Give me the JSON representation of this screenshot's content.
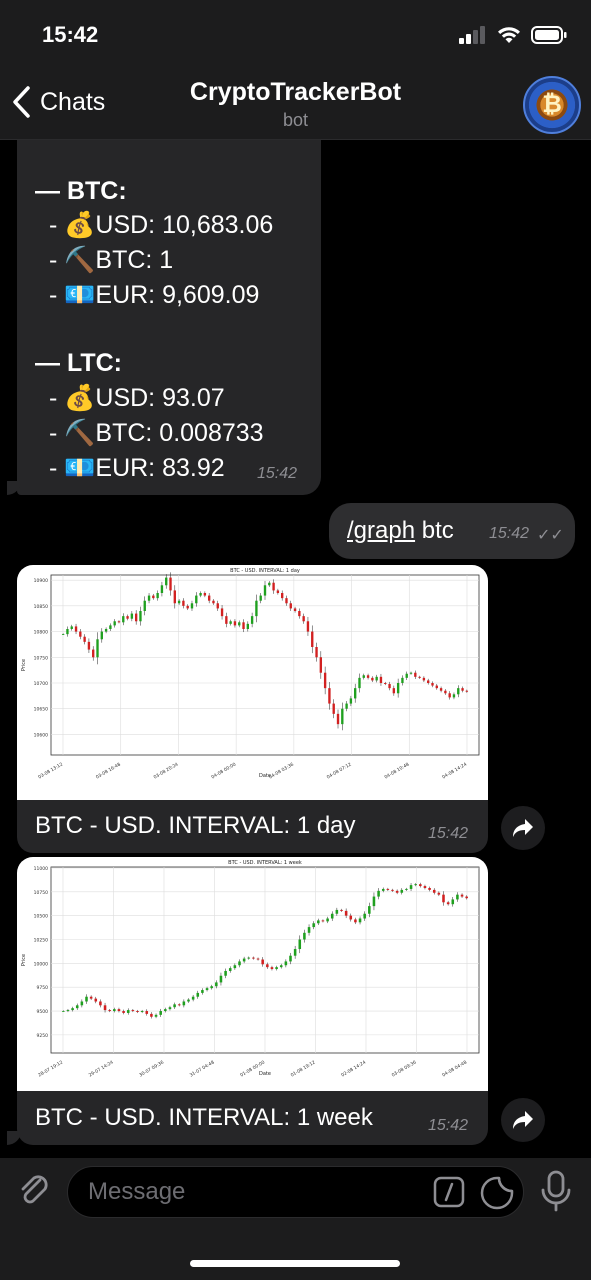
{
  "status_bar": {
    "time": "15:42"
  },
  "nav": {
    "back_label": "Chats",
    "title": "CryptoTrackerBot",
    "subtitle": "bot",
    "avatar_glyph": "₿"
  },
  "messages": {
    "prices": {
      "btc_header": "— BTC:",
      "btc_lines": [
        "- 💰USD: 10,683.06",
        "- ⛏️BTC: 1",
        "- 💶EUR: 9,609.09"
      ],
      "ltc_header": "— LTC:",
      "ltc_lines": [
        "- 💰USD: 93.07",
        "- ⛏️BTC: 0.008733",
        "- 💶EUR: 83.92"
      ],
      "time": "15:42"
    },
    "command": {
      "link": "/graph",
      "rest": " btc",
      "time": "15:42"
    },
    "photo1": {
      "caption": "BTC - USD. INTERVAL: 1 day",
      "time": "15:42"
    },
    "photo2": {
      "caption": "BTC - USD. INTERVAL: 1 week",
      "time": "15:42"
    }
  },
  "input": {
    "placeholder": "Message"
  },
  "chart_data": [
    {
      "type": "candlestick",
      "title": "BTC - USD. INTERVAL: 1 day",
      "xlabel": "Date",
      "ylabel": "Price",
      "ylim": [
        10560,
        10910
      ],
      "yticks": [
        10600,
        10650,
        10700,
        10750,
        10800,
        10850,
        10900
      ],
      "xticks": [
        "03-08 13:12",
        "03-08 16:48",
        "03-08 20:24",
        "04-08 00:00",
        "04-08 03:36",
        "04-08 07:12",
        "04-08 10:48",
        "04-08 14:24"
      ],
      "grid": true,
      "series": [
        {
          "name": "",
          "values": [
            10795,
            10805,
            10810,
            10800,
            10790,
            10780,
            10765,
            10750,
            10785,
            10800,
            10805,
            10812,
            10820,
            10818,
            10830,
            10825,
            10835,
            10820,
            10840,
            10860,
            10870,
            10865,
            10875,
            10890,
            10905,
            10880,
            10855,
            10860,
            10850,
            10845,
            10855,
            10870,
            10875,
            10870,
            10860,
            10855,
            10845,
            10830,
            10815,
            10820,
            10812,
            10818,
            10805,
            10815,
            10830,
            10860,
            10870,
            10890,
            10895,
            10880,
            10875,
            10865,
            10855,
            10845,
            10840,
            10830,
            10820,
            10800,
            10770,
            10750,
            10720,
            10690,
            10660,
            10640,
            10620,
            10650,
            10660,
            10670,
            10690,
            10710,
            10715,
            10710,
            10705,
            10712,
            10700,
            10698,
            10690,
            10680,
            10700,
            10710,
            10718,
            10720,
            10712,
            10710,
            10705,
            10700,
            10695,
            10690,
            10685,
            10680,
            10672,
            10678,
            10690,
            10685,
            10683
          ]
        }
      ]
    },
    {
      "type": "candlestick",
      "title": "BTC - USD. INTERVAL: 1 week",
      "xlabel": "Date",
      "ylabel": "Price",
      "ylim": [
        9060,
        11010
      ],
      "yticks": [
        9250,
        9500,
        9750,
        10000,
        10250,
        10500,
        10750,
        11000
      ],
      "xticks": [
        "28-07 19:12",
        "29-07 14:24",
        "30-07 09:36",
        "31-07 04:48",
        "01-08 00:00",
        "01-08 19:12",
        "02-08 14:24",
        "03-08 09:36",
        "04-08 04:48"
      ],
      "grid": true,
      "series": [
        {
          "name": "",
          "values": [
            9500,
            9510,
            9530,
            9560,
            9600,
            9650,
            9630,
            9600,
            9560,
            9510,
            9500,
            9520,
            9500,
            9480,
            9510,
            9500,
            9490,
            9500,
            9470,
            9440,
            9460,
            9500,
            9520,
            9540,
            9570,
            9560,
            9600,
            9620,
            9650,
            9690,
            9720,
            9740,
            9760,
            9800,
            9870,
            9920,
            9950,
            9980,
            10020,
            10050,
            10060,
            10050,
            10040,
            9990,
            9960,
            9940,
            9960,
            9980,
            10020,
            10080,
            10150,
            10250,
            10320,
            10380,
            10420,
            10450,
            10440,
            10470,
            10520,
            10560,
            10550,
            10500,
            10460,
            10430,
            10470,
            10520,
            10600,
            10700,
            10760,
            10780,
            10770,
            10760,
            10740,
            10770,
            10780,
            10820,
            10830,
            10810,
            10790,
            10770,
            10740,
            10720,
            10640,
            10620,
            10670,
            10720,
            10700,
            10683
          ]
        }
      ]
    }
  ]
}
